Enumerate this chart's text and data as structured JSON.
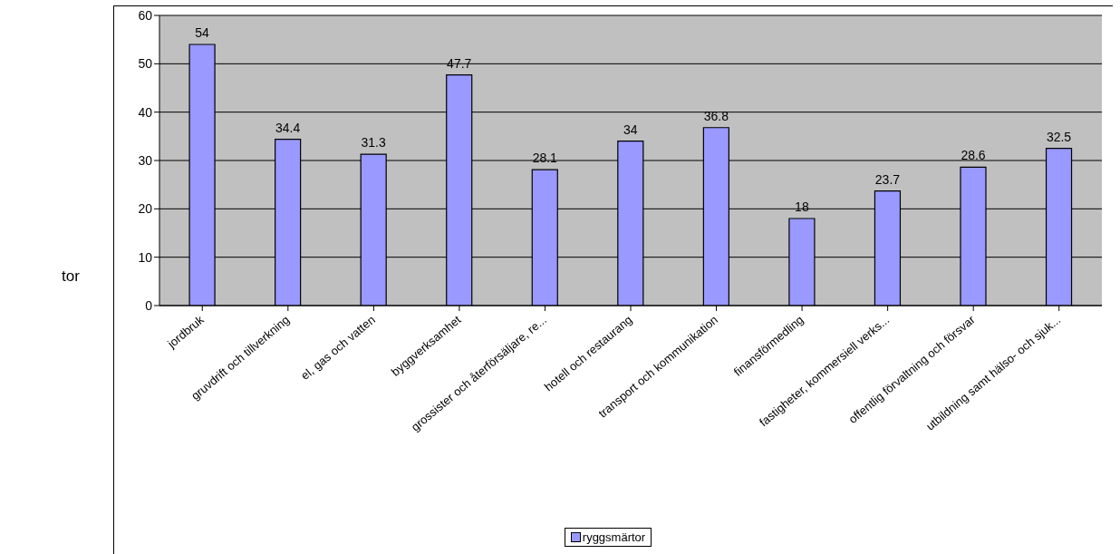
{
  "chart_data": {
    "type": "bar",
    "categories": [
      "jordbruk",
      "gruvdrift och tillverkning",
      "el, gas och vatten",
      "byggverksamhet",
      "grossister och återförsäljare, re...",
      "hotell och restaurang",
      "transport och kommunikation",
      "finansförmedling",
      "fastigheter, kommersiell verks...",
      "offentlig förvaltning och försvar",
      "utbildning samt hälso- och sjuk..."
    ],
    "series": [
      {
        "name": "ryggsmärtor",
        "color": "#9999ff",
        "values": [
          54,
          34.4,
          31.3,
          47.7,
          28.1,
          34,
          36.8,
          18,
          23.7,
          28.6,
          32.5
        ]
      }
    ],
    "ylim": [
      0,
      60
    ],
    "yticks": [
      0,
      10,
      20,
      30,
      40,
      50,
      60
    ],
    "grid": "y",
    "legend": "bottom",
    "data_labels": true,
    "annotations": [
      "tor"
    ]
  }
}
